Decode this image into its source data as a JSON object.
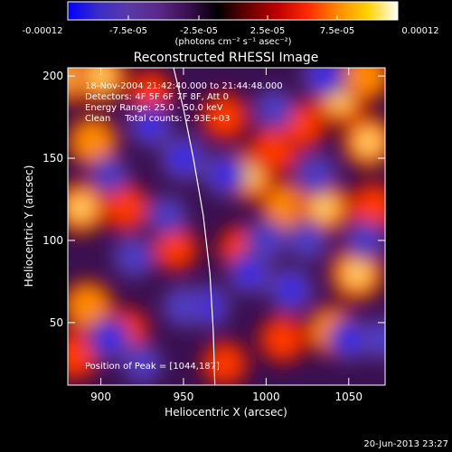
{
  "chart_data": {
    "type": "heatmap",
    "title": "Reconstructed RHESSI Image",
    "xlabel": "Heliocentric X (arcsec)",
    "ylabel": "Heliocentric Y (arcsec)",
    "xlim": [
      880,
      1072
    ],
    "ylim": [
      12,
      205
    ],
    "x_ticks": [
      {
        "value": 900,
        "label": "900"
      },
      {
        "value": 950,
        "label": "950"
      },
      {
        "value": 1000,
        "label": "1000"
      },
      {
        "value": 1050,
        "label": "1050"
      }
    ],
    "y_ticks": [
      {
        "value": 50,
        "label": "50"
      },
      {
        "value": 100,
        "label": "100"
      },
      {
        "value": 150,
        "label": "150"
      },
      {
        "value": 200,
        "label": "200"
      }
    ],
    "colorbar": {
      "min": -0.00012,
      "max": 0.00012,
      "tick_labels": [
        "-0.00012",
        "-7.5e-05",
        "-2.5e-05",
        "2.5e-05",
        "7.5e-05",
        "0.00012"
      ],
      "unit_label": "(photons cm⁻² s⁻¹ asec⁻²)",
      "colormap": [
        "#0000ff",
        "#3a2cc8",
        "#5a3aa8",
        "#5a2a8a",
        "#3a1050",
        "#000000",
        "#6a0000",
        "#c00000",
        "#ff2a00",
        "#ff8a00",
        "#ffd200",
        "#ffffff"
      ]
    },
    "annotations": [
      "18-Nov-2004 21:42:40.000 to 21:44:48.000",
      "Detectors: 4F 5F 6F 7F 8F, Att 0",
      "Energy Range: 25.0 - 50.0 keV",
      "Clean     Total counts: 2.93E+03"
    ],
    "peak_label": "Position of Peak = [1044,187]",
    "limb_points": [
      [
        944,
        205
      ],
      [
        950,
        180
      ],
      [
        956,
        150
      ],
      [
        962,
        115
      ],
      [
        966,
        80
      ],
      [
        968,
        45
      ],
      [
        969,
        12
      ]
    ],
    "hot_blobs": [
      {
        "x": 884,
        "y": 200,
        "strength": 1.0
      },
      {
        "x": 900,
        "y": 200,
        "strength": 0.9
      },
      {
        "x": 895,
        "y": 160,
        "strength": 0.8
      },
      {
        "x": 888,
        "y": 120,
        "strength": 0.9
      },
      {
        "x": 892,
        "y": 60,
        "strength": 0.8
      },
      {
        "x": 884,
        "y": 30,
        "strength": 0.7
      },
      {
        "x": 915,
        "y": 120,
        "strength": 0.6
      },
      {
        "x": 915,
        "y": 45,
        "strength": 0.5
      },
      {
        "x": 945,
        "y": 95,
        "strength": 0.5
      },
      {
        "x": 975,
        "y": 175,
        "strength": 0.6
      },
      {
        "x": 990,
        "y": 140,
        "strength": 0.9
      },
      {
        "x": 1005,
        "y": 155,
        "strength": 0.7
      },
      {
        "x": 1012,
        "y": 120,
        "strength": 0.8
      },
      {
        "x": 1022,
        "y": 170,
        "strength": 0.6
      },
      {
        "x": 1035,
        "y": 120,
        "strength": 0.9
      },
      {
        "x": 1045,
        "y": 187,
        "strength": 1.0
      },
      {
        "x": 1060,
        "y": 200,
        "strength": 0.8
      },
      {
        "x": 1062,
        "y": 160,
        "strength": 0.9
      },
      {
        "x": 1055,
        "y": 80,
        "strength": 1.0
      },
      {
        "x": 1065,
        "y": 120,
        "strength": 0.7
      },
      {
        "x": 1040,
        "y": 45,
        "strength": 0.8
      },
      {
        "x": 1010,
        "y": 40,
        "strength": 0.6
      },
      {
        "x": 975,
        "y": 25,
        "strength": 0.5
      },
      {
        "x": 985,
        "y": 95,
        "strength": 0.5
      },
      {
        "x": 930,
        "y": 190,
        "strength": 0.4
      }
    ],
    "cold_blobs": [
      {
        "x": 950,
        "y": 150,
        "strength": 1.0
      },
      {
        "x": 930,
        "y": 170,
        "strength": 0.8
      },
      {
        "x": 975,
        "y": 140,
        "strength": 0.8
      },
      {
        "x": 965,
        "y": 60,
        "strength": 0.8
      },
      {
        "x": 950,
        "y": 60,
        "strength": 0.7
      },
      {
        "x": 990,
        "y": 80,
        "strength": 0.8
      },
      {
        "x": 1000,
        "y": 100,
        "strength": 0.7
      },
      {
        "x": 1015,
        "y": 70,
        "strength": 0.9
      },
      {
        "x": 1030,
        "y": 140,
        "strength": 0.7
      },
      {
        "x": 1035,
        "y": 200,
        "strength": 0.8
      },
      {
        "x": 920,
        "y": 90,
        "strength": 0.7
      },
      {
        "x": 905,
        "y": 40,
        "strength": 0.8
      },
      {
        "x": 925,
        "y": 25,
        "strength": 0.6
      },
      {
        "x": 1050,
        "y": 40,
        "strength": 0.8
      },
      {
        "x": 1070,
        "y": 40,
        "strength": 0.7
      },
      {
        "x": 1060,
        "y": 100,
        "strength": 0.6
      },
      {
        "x": 1005,
        "y": 180,
        "strength": 0.6
      },
      {
        "x": 940,
        "y": 115,
        "strength": 0.6
      },
      {
        "x": 905,
        "y": 140,
        "strength": 0.5
      },
      {
        "x": 1025,
        "y": 100,
        "strength": 0.6
      }
    ]
  },
  "footer": {
    "timestamp": "20-Jun-2013 23:27"
  }
}
